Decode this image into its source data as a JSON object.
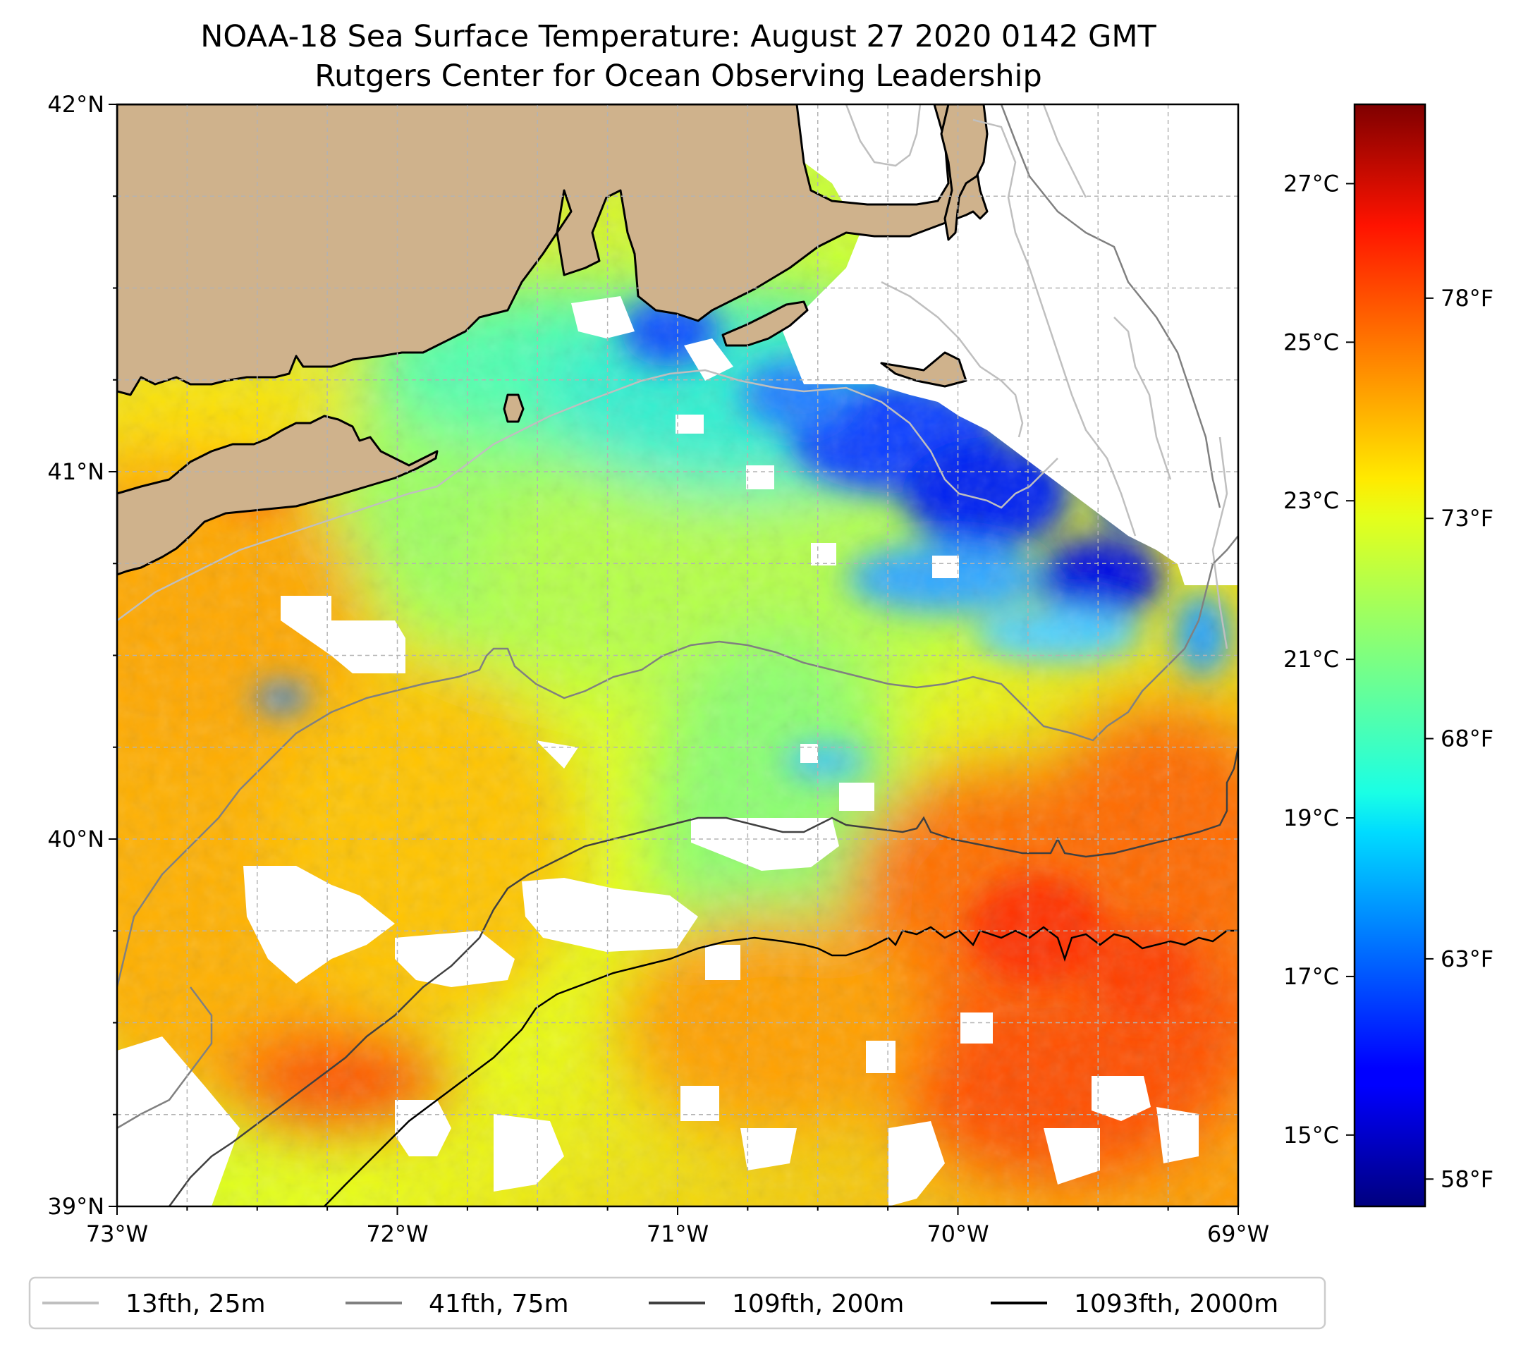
{
  "title": {
    "line1": "NOAA-18 Sea Surface Temperature: August 27 2020 0142 GMT",
    "line2": "Rutgers Center for Ocean Observing Leadership"
  },
  "map": {
    "lon_range": [
      -73,
      -69
    ],
    "lat_range": [
      39,
      42
    ],
    "lat_ticks": [
      {
        "value": 42,
        "label": "42°N"
      },
      {
        "value": 41,
        "label": "41°N"
      },
      {
        "value": 40,
        "label": "40°N"
      },
      {
        "value": 39,
        "label": "39°N"
      }
    ],
    "lon_ticks": [
      {
        "value": -73,
        "label": "73°W"
      },
      {
        "value": -72,
        "label": "72°W"
      },
      {
        "value": -71,
        "label": "71°W"
      },
      {
        "value": -70,
        "label": "70°W"
      },
      {
        "value": -69,
        "label": "69°W"
      }
    ],
    "land_color": "#cfb28c",
    "gridlines": true
  },
  "colorbar": {
    "colormap": "jet",
    "celsius_range": [
      14.1,
      28.0
    ],
    "celsius_ticks": [
      {
        "value": 27,
        "label": "27°C"
      },
      {
        "value": 25,
        "label": "25°C"
      },
      {
        "value": 23,
        "label": "23°C"
      },
      {
        "value": 21,
        "label": "21°C"
      },
      {
        "value": 19,
        "label": "19°C"
      },
      {
        "value": 17,
        "label": "17°C"
      },
      {
        "value": 15,
        "label": "15°C"
      }
    ],
    "fahrenheit_ticks": [
      {
        "value": 78,
        "label": "78°F"
      },
      {
        "value": 73,
        "label": "73°F"
      },
      {
        "value": 68,
        "label": "68°F"
      },
      {
        "value": 63,
        "label": "63°F"
      },
      {
        "value": 58,
        "label": "58°F"
      }
    ]
  },
  "legend": {
    "placement": "bottom",
    "items": [
      {
        "label": "13fth, 25m",
        "color": "#bfbfbf"
      },
      {
        "label": "41fth, 75m",
        "color": "#808080"
      },
      {
        "label": "109fth, 200m",
        "color": "#404040"
      },
      {
        "label": "1093fth, 2000m",
        "color": "#000000"
      }
    ]
  }
}
